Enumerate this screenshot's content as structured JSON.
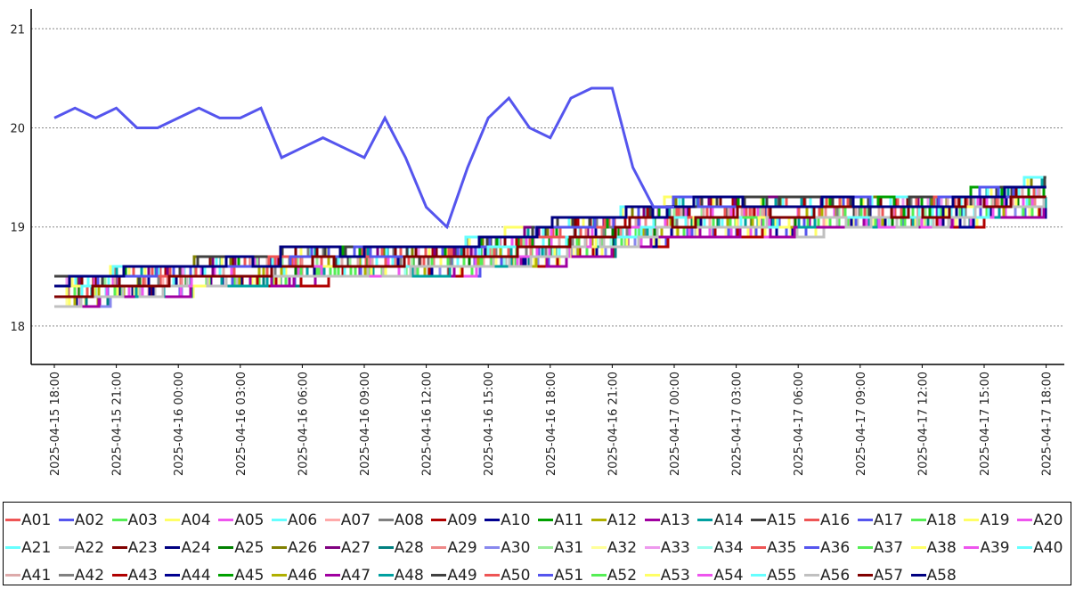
{
  "chart_data": {
    "type": "line",
    "title": "",
    "xlabel": "",
    "ylabel": "",
    "ylim": [
      17.6,
      21.2
    ],
    "y_ticks": [
      18,
      19,
      20,
      21
    ],
    "x_ticks": [
      "2025-04-15 18:00",
      "2025-04-15 21:00",
      "2025-04-16 00:00",
      "2025-04-16 03:00",
      "2025-04-16 06:00",
      "2025-04-16 09:00",
      "2025-04-16 12:00",
      "2025-04-16 15:00",
      "2025-04-16 18:00",
      "2025-04-16 21:00",
      "2025-04-17 00:00",
      "2025-04-17 03:00",
      "2025-04-17 06:00",
      "2025-04-17 09:00",
      "2025-04-17 12:00",
      "2025-04-17 15:00",
      "2025-04-17 18:00"
    ],
    "grid": "horizontal dotted",
    "legend_position": "bottom",
    "highlight_series": {
      "name": "A02",
      "color": "#5555ee",
      "x": [
        "2025-04-15 18:00",
        "2025-04-15 19:00",
        "2025-04-15 20:00",
        "2025-04-15 21:00",
        "2025-04-15 22:00",
        "2025-04-15 23:00",
        "2025-04-16 00:00",
        "2025-04-16 01:00",
        "2025-04-16 02:00",
        "2025-04-16 03:00",
        "2025-04-16 04:00",
        "2025-04-16 05:00",
        "2025-04-16 06:00",
        "2025-04-16 07:00",
        "2025-04-16 08:00",
        "2025-04-16 09:00",
        "2025-04-16 10:00",
        "2025-04-16 11:00",
        "2025-04-16 12:00",
        "2025-04-16 13:00",
        "2025-04-16 14:00",
        "2025-04-16 15:00",
        "2025-04-16 16:00",
        "2025-04-16 17:00",
        "2025-04-16 18:00",
        "2025-04-16 19:00",
        "2025-04-16 20:00",
        "2025-04-16 21:00",
        "2025-04-16 22:00",
        "2025-04-16 23:00",
        "2025-04-17 00:00"
      ],
      "y": [
        20.1,
        20.2,
        20.1,
        20.2,
        20.0,
        20.0,
        20.1,
        20.2,
        20.1,
        20.1,
        20.2,
        19.7,
        19.8,
        19.9,
        19.8,
        19.7,
        20.1,
        19.7,
        19.2,
        19.0,
        19.6,
        20.1,
        20.3,
        20.0,
        19.9,
        20.3,
        20.4,
        20.4,
        19.6,
        19.2,
        19.2
      ]
    },
    "band_series": {
      "x": [
        "2025-04-15 18:00",
        "2025-04-16 00:00",
        "2025-04-16 06:00",
        "2025-04-16 12:00",
        "2025-04-16 18:00",
        "2025-04-17 00:00",
        "2025-04-17 06:00",
        "2025-04-17 12:00",
        "2025-04-17 18:00"
      ],
      "low": [
        18.2,
        18.35,
        18.45,
        18.5,
        18.65,
        18.9,
        18.95,
        19.0,
        19.15
      ],
      "high": [
        18.5,
        18.65,
        18.8,
        18.8,
        19.05,
        19.3,
        19.3,
        19.3,
        19.5
      ]
    },
    "series": [
      {
        "name": "A01",
        "color": "#ee5555"
      },
      {
        "name": "A02",
        "color": "#5555ee"
      },
      {
        "name": "A03",
        "color": "#55ee55"
      },
      {
        "name": "A04",
        "color": "#ffff66"
      },
      {
        "name": "A05",
        "color": "#ee55ee"
      },
      {
        "name": "A06",
        "color": "#66ffff"
      },
      {
        "name": "A07",
        "color": "#ffaaaa"
      },
      {
        "name": "A08",
        "color": "#808080"
      },
      {
        "name": "A09",
        "color": "#b00000"
      },
      {
        "name": "A10",
        "color": "#000090"
      },
      {
        "name": "A11",
        "color": "#00a000"
      },
      {
        "name": "A12",
        "color": "#b0b000"
      },
      {
        "name": "A13",
        "color": "#a000a0"
      },
      {
        "name": "A14",
        "color": "#00a0a0"
      },
      {
        "name": "A15",
        "color": "#404040"
      },
      {
        "name": "A16",
        "color": "#ee5555"
      },
      {
        "name": "A17",
        "color": "#5555ee"
      },
      {
        "name": "A18",
        "color": "#55ee55"
      },
      {
        "name": "A19",
        "color": "#ffff66"
      },
      {
        "name": "A20",
        "color": "#ee55ee"
      },
      {
        "name": "A21",
        "color": "#66ffff"
      },
      {
        "name": "A22",
        "color": "#c0c0c0"
      },
      {
        "name": "A23",
        "color": "#800000"
      },
      {
        "name": "A24",
        "color": "#000080"
      },
      {
        "name": "A25",
        "color": "#008000"
      },
      {
        "name": "A26",
        "color": "#808000"
      },
      {
        "name": "A27",
        "color": "#800080"
      },
      {
        "name": "A28",
        "color": "#008080"
      },
      {
        "name": "A29",
        "color": "#ee8888"
      },
      {
        "name": "A30",
        "color": "#8888ee"
      },
      {
        "name": "A31",
        "color": "#99ee99"
      },
      {
        "name": "A32",
        "color": "#ffff99"
      },
      {
        "name": "A33",
        "color": "#ee99ee"
      },
      {
        "name": "A34",
        "color": "#99ffee"
      },
      {
        "name": "A35",
        "color": "#ee5555"
      },
      {
        "name": "A36",
        "color": "#5555ee"
      },
      {
        "name": "A37",
        "color": "#55ee55"
      },
      {
        "name": "A38",
        "color": "#ffff66"
      },
      {
        "name": "A39",
        "color": "#ee55ee"
      },
      {
        "name": "A40",
        "color": "#66ffff"
      },
      {
        "name": "A41",
        "color": "#ddaaaa"
      },
      {
        "name": "A42",
        "color": "#808080"
      },
      {
        "name": "A43",
        "color": "#b00000"
      },
      {
        "name": "A44",
        "color": "#000090"
      },
      {
        "name": "A45",
        "color": "#00a000"
      },
      {
        "name": "A46",
        "color": "#b0b000"
      },
      {
        "name": "A47",
        "color": "#a000a0"
      },
      {
        "name": "A48",
        "color": "#00a0a0"
      },
      {
        "name": "A49",
        "color": "#404040"
      },
      {
        "name": "A50",
        "color": "#ee5555"
      },
      {
        "name": "A51",
        "color": "#5555ee"
      },
      {
        "name": "A52",
        "color": "#55ee55"
      },
      {
        "name": "A53",
        "color": "#ffff66"
      },
      {
        "name": "A54",
        "color": "#ee55ee"
      },
      {
        "name": "A55",
        "color": "#66ffff"
      },
      {
        "name": "A56",
        "color": "#c0c0c0"
      },
      {
        "name": "A57",
        "color": "#800000"
      },
      {
        "name": "A58",
        "color": "#000080"
      }
    ]
  }
}
